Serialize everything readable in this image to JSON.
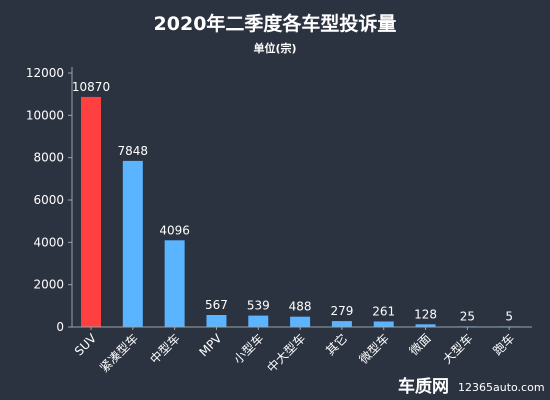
{
  "watermark": {
    "logo": "车质网",
    "site": "12365auto.com"
  },
  "colors": {
    "background": "#2b3240",
    "highlight": "#ff4040",
    "bar": "#5ab4ff",
    "axis": "#9aa3ad"
  },
  "chart_data": {
    "type": "bar",
    "title": "2020年二季度各车型投诉量",
    "subtitle": "单位(宗)",
    "categories": [
      "SUV",
      "紧凑型车",
      "中型车",
      "MPV",
      "小型车",
      "中大型车",
      "其它",
      "微型车",
      "微面",
      "大型车",
      "跑车"
    ],
    "values": [
      10870,
      7848,
      4096,
      567,
      539,
      488,
      279,
      261,
      128,
      25,
      5
    ],
    "data_labels": [
      "10870",
      "7848",
      "4096",
      "567",
      "539",
      "488",
      "279",
      "261",
      "128",
      "25",
      "5"
    ],
    "highlight_index": 0,
    "ylim": [
      0,
      12000
    ],
    "yticks": [
      0,
      2000,
      4000,
      6000,
      8000,
      10000,
      12000
    ],
    "grid": false,
    "legend": "none"
  }
}
